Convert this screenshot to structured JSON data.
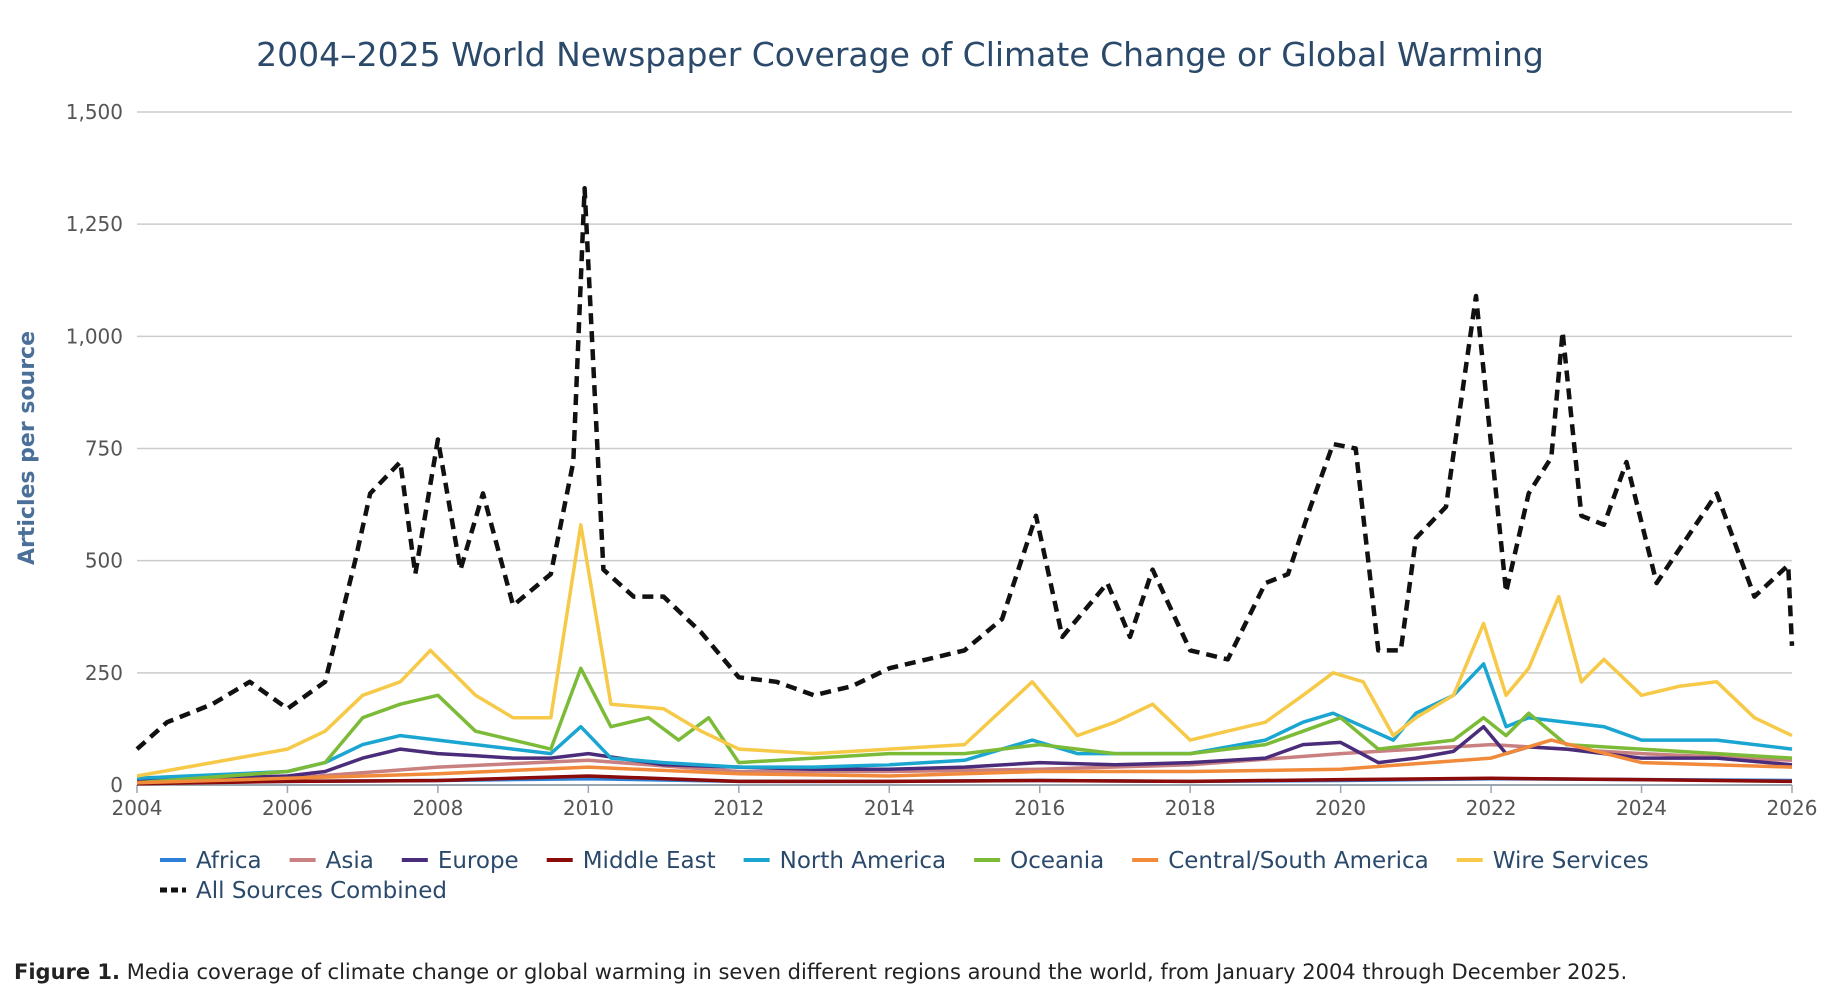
{
  "chart_data": {
    "type": "line",
    "title": "2004–2025 World Newspaper Coverage of Climate Change or Global Warming",
    "ylabel": "Articles per source",
    "xlabel": "",
    "xlim": [
      2004,
      2026
    ],
    "ylim": [
      0,
      1500
    ],
    "x_ticks": [
      "2004",
      "2006",
      "2008",
      "2010",
      "2012",
      "2014",
      "2016",
      "2018",
      "2020",
      "2022",
      "2024",
      "2026"
    ],
    "y_ticks": [
      "0",
      "250",
      "500",
      "750",
      "1,000",
      "1,250",
      "1,500"
    ],
    "grid": "horizontal",
    "legend_position": "bottom-left",
    "series": [
      {
        "name": "Africa",
        "color": "#2e7fd6",
        "dashed": false,
        "x": [
          2004,
          2006,
          2008,
          2010,
          2012,
          2014,
          2016,
          2018,
          2020,
          2022,
          2024,
          2026
        ],
        "y": [
          5,
          8,
          10,
          14,
          8,
          8,
          10,
          8,
          10,
          14,
          12,
          10
        ]
      },
      {
        "name": "Asia",
        "color": "#c98080",
        "dashed": false,
        "x": [
          2004,
          2006,
          2008,
          2010,
          2012,
          2014,
          2016,
          2018,
          2020,
          2022,
          2024,
          2026
        ],
        "y": [
          10,
          15,
          40,
          55,
          30,
          30,
          35,
          45,
          70,
          90,
          70,
          55
        ]
      },
      {
        "name": "Europe",
        "color": "#4b2c7a",
        "dashed": false,
        "x": [
          2004,
          2006,
          2006.5,
          2007,
          2007.5,
          2008,
          2008.5,
          2009,
          2009.5,
          2010,
          2011,
          2012,
          2013,
          2014,
          2015,
          2016,
          2017,
          2018,
          2019,
          2019.5,
          2020,
          2020.5,
          2021,
          2021.5,
          2021.9,
          2022.2,
          2022.5,
          2023,
          2024,
          2025,
          2026
        ],
        "y": [
          10,
          20,
          30,
          60,
          80,
          70,
          65,
          60,
          60,
          70,
          45,
          40,
          35,
          35,
          40,
          50,
          45,
          50,
          60,
          90,
          95,
          50,
          60,
          75,
          130,
          70,
          85,
          80,
          60,
          60,
          45
        ]
      },
      {
        "name": "Middle East",
        "color": "#8b0a0a",
        "dashed": false,
        "x": [
          2004,
          2006,
          2008,
          2010,
          2012,
          2014,
          2016,
          2018,
          2020,
          2022,
          2024,
          2026
        ],
        "y": [
          3,
          8,
          10,
          20,
          8,
          8,
          10,
          8,
          12,
          15,
          12,
          8
        ]
      },
      {
        "name": "North America",
        "color": "#1aa6d1",
        "dashed": false,
        "x": [
          2004,
          2006,
          2006.5,
          2007,
          2007.5,
          2008,
          2008.5,
          2009,
          2009.5,
          2009.9,
          2010.3,
          2011,
          2012,
          2013,
          2014,
          2015,
          2015.9,
          2016.5,
          2017,
          2018,
          2019,
          2019.5,
          2019.9,
          2020.3,
          2020.7,
          2021,
          2021.5,
          2021.9,
          2022.2,
          2022.5,
          2023,
          2023.5,
          2024,
          2025,
          2026
        ],
        "y": [
          15,
          30,
          50,
          90,
          110,
          100,
          90,
          80,
          70,
          130,
          60,
          50,
          40,
          40,
          45,
          55,
          100,
          70,
          70,
          70,
          100,
          140,
          160,
          130,
          100,
          160,
          200,
          270,
          130,
          150,
          140,
          130,
          100,
          100,
          80
        ]
      },
      {
        "name": "Oceania",
        "color": "#7cbb37",
        "dashed": false,
        "x": [
          2004,
          2006,
          2006.5,
          2007,
          2007.5,
          2008,
          2008.5,
          2009,
          2009.5,
          2009.9,
          2010.3,
          2010.8,
          2011.2,
          2011.6,
          2012,
          2013,
          2014,
          2015,
          2016,
          2017,
          2018,
          2019,
          2019.5,
          2020,
          2020.5,
          2021,
          2021.5,
          2021.9,
          2022.2,
          2022.5,
          2023,
          2024,
          2025,
          2026
        ],
        "y": [
          5,
          30,
          50,
          150,
          180,
          200,
          120,
          100,
          80,
          260,
          130,
          150,
          100,
          150,
          50,
          60,
          70,
          70,
          90,
          70,
          70,
          90,
          120,
          150,
          80,
          90,
          100,
          150,
          110,
          160,
          90,
          80,
          70,
          60
        ]
      },
      {
        "name": "Central/South America",
        "color": "#f28a3c",
        "dashed": false,
        "x": [
          2004,
          2006,
          2008,
          2010,
          2012,
          2014,
          2016,
          2018,
          2020,
          2022,
          2022.8,
          2024,
          2026
        ],
        "y": [
          5,
          15,
          25,
          40,
          25,
          20,
          30,
          30,
          35,
          60,
          100,
          50,
          40
        ]
      },
      {
        "name": "Wire Services",
        "color": "#f7c948",
        "dashed": false,
        "x": [
          2004,
          2005,
          2006,
          2006.5,
          2007,
          2007.5,
          2007.9,
          2008.5,
          2009,
          2009.5,
          2009.9,
          2010.3,
          2011,
          2011.5,
          2012,
          2013,
          2014,
          2015,
          2015.9,
          2016.5,
          2017,
          2017.5,
          2018,
          2019,
          2019.5,
          2019.9,
          2020.3,
          2020.7,
          2021,
          2021.5,
          2021.9,
          2022.2,
          2022.5,
          2022.9,
          2023.2,
          2023.5,
          2024,
          2024.5,
          2025,
          2025.5,
          2026
        ],
        "y": [
          20,
          50,
          80,
          120,
          200,
          230,
          300,
          200,
          150,
          150,
          580,
          180,
          170,
          120,
          80,
          70,
          80,
          90,
          230,
          110,
          140,
          180,
          100,
          140,
          200,
          250,
          230,
          110,
          150,
          200,
          360,
          200,
          260,
          420,
          230,
          280,
          200,
          220,
          230,
          150,
          110
        ]
      },
      {
        "name": "All Sources Combined",
        "color": "#111111",
        "dashed": true,
        "x": [
          2004,
          2004.4,
          2005,
          2005.5,
          2006,
          2006.5,
          2006.9,
          2007.1,
          2007.5,
          2007.7,
          2008,
          2008.3,
          2008.6,
          2009,
          2009.5,
          2009.8,
          2009.95,
          2010.2,
          2010.6,
          2011,
          2011.5,
          2012,
          2012.5,
          2013,
          2013.5,
          2014,
          2014.5,
          2015,
          2015.5,
          2015.95,
          2016.3,
          2016.9,
          2017.2,
          2017.5,
          2018,
          2018.5,
          2019,
          2019.3,
          2019.6,
          2019.9,
          2020.2,
          2020.5,
          2020.8,
          2021,
          2021.4,
          2021.8,
          2022.2,
          2022.5,
          2022.8,
          2022.95,
          2023.2,
          2023.5,
          2023.8,
          2024.2,
          2024.6,
          2025,
          2025.5,
          2025.95,
          2026
        ],
        "y": [
          80,
          140,
          180,
          230,
          170,
          230,
          500,
          650,
          720,
          470,
          770,
          480,
          650,
          400,
          470,
          720,
          1330,
          480,
          420,
          420,
          340,
          240,
          230,
          200,
          220,
          260,
          280,
          300,
          370,
          600,
          330,
          450,
          330,
          480,
          300,
          280,
          450,
          470,
          620,
          760,
          750,
          300,
          300,
          550,
          620,
          1090,
          430,
          650,
          730,
          1010,
          600,
          580,
          720,
          450,
          550,
          650,
          420,
          490,
          310
        ]
      }
    ]
  },
  "caption": {
    "label": "Figure 1.",
    "text": " Media coverage of climate change or global warming in seven different regions around the world, from January 2004 through December 2025."
  }
}
